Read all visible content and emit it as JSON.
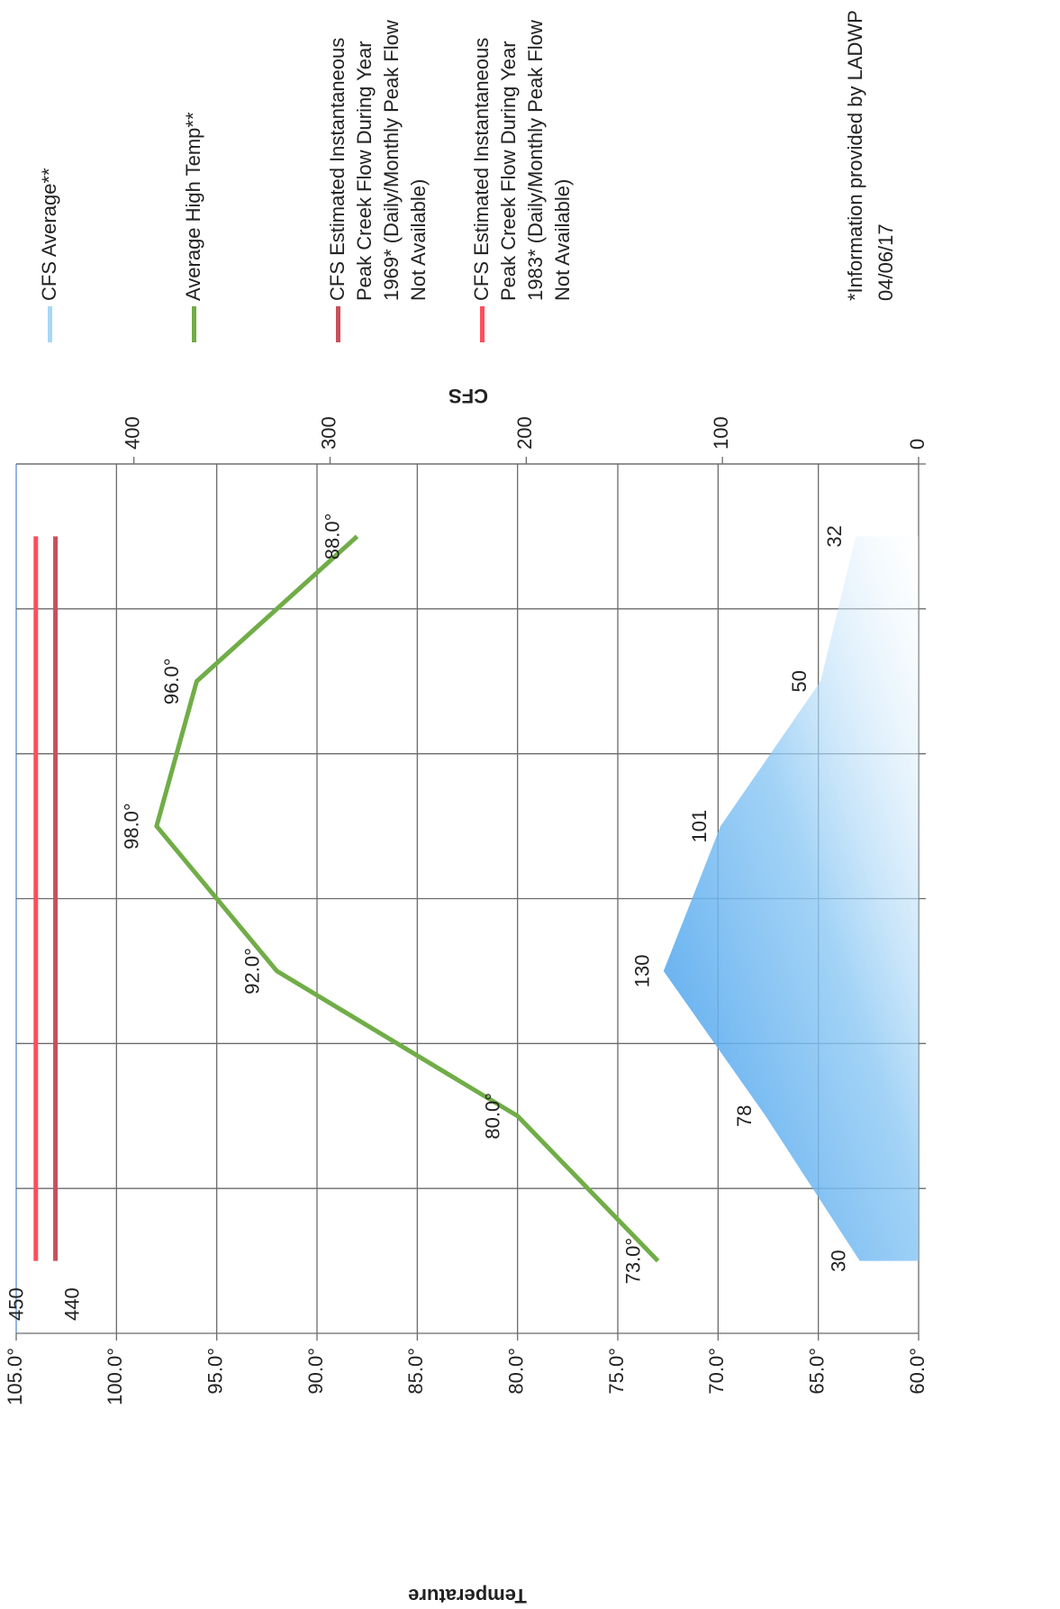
{
  "chart_data": {
    "type": "line",
    "categories": [
      null,
      null,
      null,
      null,
      null,
      null
    ],
    "y_label": "Temperature",
    "y2_label": "CFS",
    "ylim": [
      60,
      105
    ],
    "yticks": [
      {
        "value": 60,
        "label": "60.0°"
      },
      {
        "value": 65,
        "label": "65.0°"
      },
      {
        "value": 70,
        "label": "70.0°"
      },
      {
        "value": 75,
        "label": "75.0°"
      },
      {
        "value": 80,
        "label": "80.0°"
      },
      {
        "value": 85,
        "label": "85.0°"
      },
      {
        "value": 90,
        "label": "90.0°"
      },
      {
        "value": 95,
        "label": "95.0°"
      },
      {
        "value": 100,
        "label": "100.0°"
      },
      {
        "value": 105,
        "label": "105.0°"
      }
    ],
    "y2lim": [
      0,
      460
    ],
    "y2ticks": [
      0,
      100,
      200,
      300,
      400
    ],
    "grid": true,
    "legend": "right",
    "series": [
      {
        "name": "CFS Average**",
        "type": "area",
        "axis": "y2",
        "color": "#5aaaf0",
        "values": [
          30,
          78,
          130,
          101,
          50,
          32
        ]
      },
      {
        "name": "Average High Temp**",
        "type": "line",
        "color": "#70ad47",
        "values": [
          73,
          80,
          92,
          98,
          96,
          88
        ],
        "value_labels": [
          "73.0°",
          "80.0°",
          "92.0°",
          "98.0°",
          "96.0°",
          "88.0°"
        ]
      },
      {
        "name": "CFS Estimated Instantaneous Peak Creek Flow During Year 1969* (Daily/Monthly Peak Flow Not Available)",
        "type": "line",
        "axis": "y2",
        "color": "#c8505a",
        "values": [
          440,
          440,
          440,
          440,
          440,
          440
        ],
        "value_labels": [
          "440",
          null,
          null,
          null,
          null,
          null
        ]
      },
      {
        "name": "CFS Estimated Instantaneous Peak Creek Flow During Year 1983* (Daily/Monthly Peak Flow Not Available)",
        "type": "line",
        "axis": "y2",
        "color": "#ff4d5a",
        "values": [
          450,
          450,
          450,
          450,
          450,
          450
        ],
        "value_labels": [
          "450",
          null,
          null,
          null,
          null,
          null
        ]
      }
    ],
    "notes": [
      "*Information provided by LADWP",
      "04/06/17"
    ]
  }
}
